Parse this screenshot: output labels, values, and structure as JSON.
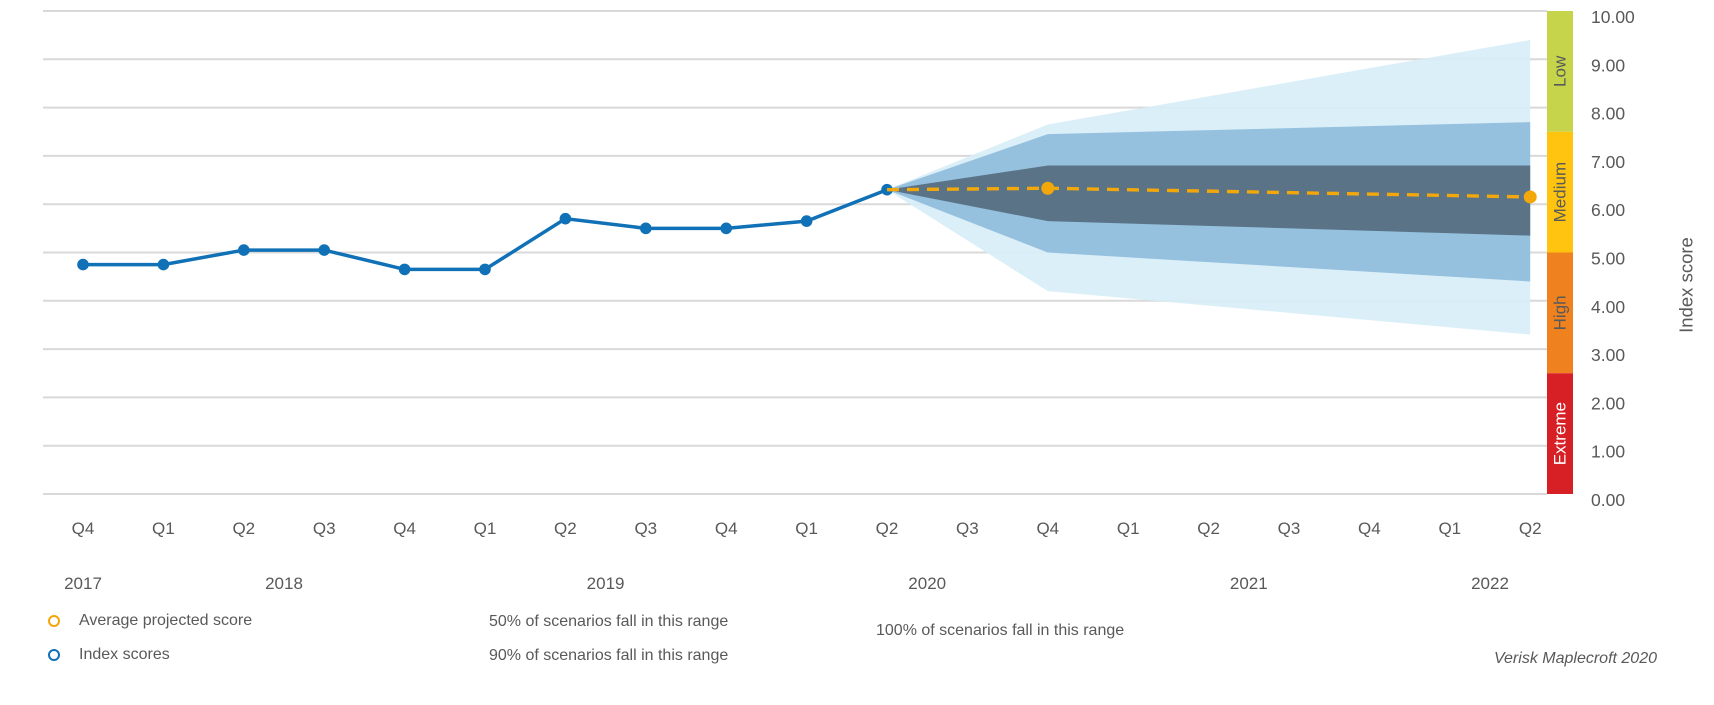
{
  "chart_data": {
    "type": "line",
    "subtype": "fan-projection",
    "title": "",
    "x_axis": {
      "quarters": [
        "Q4",
        "Q1",
        "Q2",
        "Q3",
        "Q4",
        "Q1",
        "Q2",
        "Q3",
        "Q4",
        "Q1",
        "Q2",
        "Q3",
        "Q4",
        "Q1",
        "Q2",
        "Q3",
        "Q4",
        "Q1",
        "Q2"
      ],
      "years": [
        {
          "label": "2017",
          "center_index": 0
        },
        {
          "label": "2018",
          "center_index": 2.5
        },
        {
          "label": "2019",
          "center_index": 6.5
        },
        {
          "label": "2020",
          "center_index": 10.5
        },
        {
          "label": "2021",
          "center_index": 14.5
        },
        {
          "label": "2022",
          "center_index": 17.5
        }
      ]
    },
    "y_axis": {
      "label": "Index score",
      "min": 0,
      "max": 10,
      "tick_step": 1,
      "tick_decimals": 2
    },
    "grid": true,
    "historical": {
      "name": "Index scores",
      "start_index": 0,
      "values": [
        4.75,
        4.75,
        5.05,
        5.05,
        4.65,
        4.65,
        5.7,
        5.5,
        5.5,
        5.65,
        6.3
      ]
    },
    "projected": {
      "name": "Average projected score",
      "points": [
        [
          10,
          6.3
        ],
        [
          12,
          6.33
        ],
        [
          18,
          6.15
        ]
      ],
      "markers": [
        [
          12,
          6.33
        ],
        [
          18,
          6.15
        ]
      ]
    },
    "bands": [
      {
        "label": "100% of scenarios fall in this range",
        "color": "#d7edf8",
        "upper": [
          [
            10,
            6.3
          ],
          [
            12,
            7.65
          ],
          [
            18,
            9.4
          ]
        ],
        "lower": [
          [
            10,
            6.3
          ],
          [
            12,
            4.2
          ],
          [
            18,
            3.3
          ]
        ]
      },
      {
        "label": "90% of scenarios fall in this range",
        "color": "#8fbddc",
        "upper": [
          [
            10,
            6.3
          ],
          [
            12,
            7.45
          ],
          [
            18,
            7.7
          ]
        ],
        "lower": [
          [
            10,
            6.3
          ],
          [
            12,
            5.0
          ],
          [
            18,
            4.4
          ]
        ]
      },
      {
        "label": "50% of scenarios fall in this range",
        "color": "#5a7387",
        "upper": [
          [
            10,
            6.3
          ],
          [
            12,
            6.8
          ],
          [
            18,
            6.8
          ]
        ],
        "lower": [
          [
            10,
            6.3
          ],
          [
            12,
            5.65
          ],
          [
            18,
            5.35
          ]
        ]
      }
    ],
    "risk_scale": {
      "zones": [
        {
          "label": "Low",
          "from": 7.5,
          "to": 10.0,
          "color": "#c5d44a",
          "text_color": "#595959"
        },
        {
          "label": "Medium",
          "from": 5.0,
          "to": 7.5,
          "color": "#fec40f",
          "text_color": "#595959"
        },
        {
          "label": "High",
          "from": 2.5,
          "to": 5.0,
          "color": "#f0811f",
          "text_color": "#595959"
        },
        {
          "label": "Extreme",
          "from": 0.0,
          "to": 2.5,
          "color": "#d71f26",
          "text_color": "#ffffff"
        }
      ]
    },
    "colors": {
      "historical_line": "#1071b7",
      "projected_line": "#f2a70b",
      "gridline": "#d9d9d9",
      "axis_text": "#595959"
    }
  },
  "legend": {
    "avg_projected": "Average projected score",
    "index_scores": "Index scores",
    "band50": "50% of scenarios fall in this range",
    "band90": "90% of scenarios fall in this range",
    "band100": "100% of scenarios fall in this range"
  },
  "attribution": "Verisk Maplecroft 2020"
}
